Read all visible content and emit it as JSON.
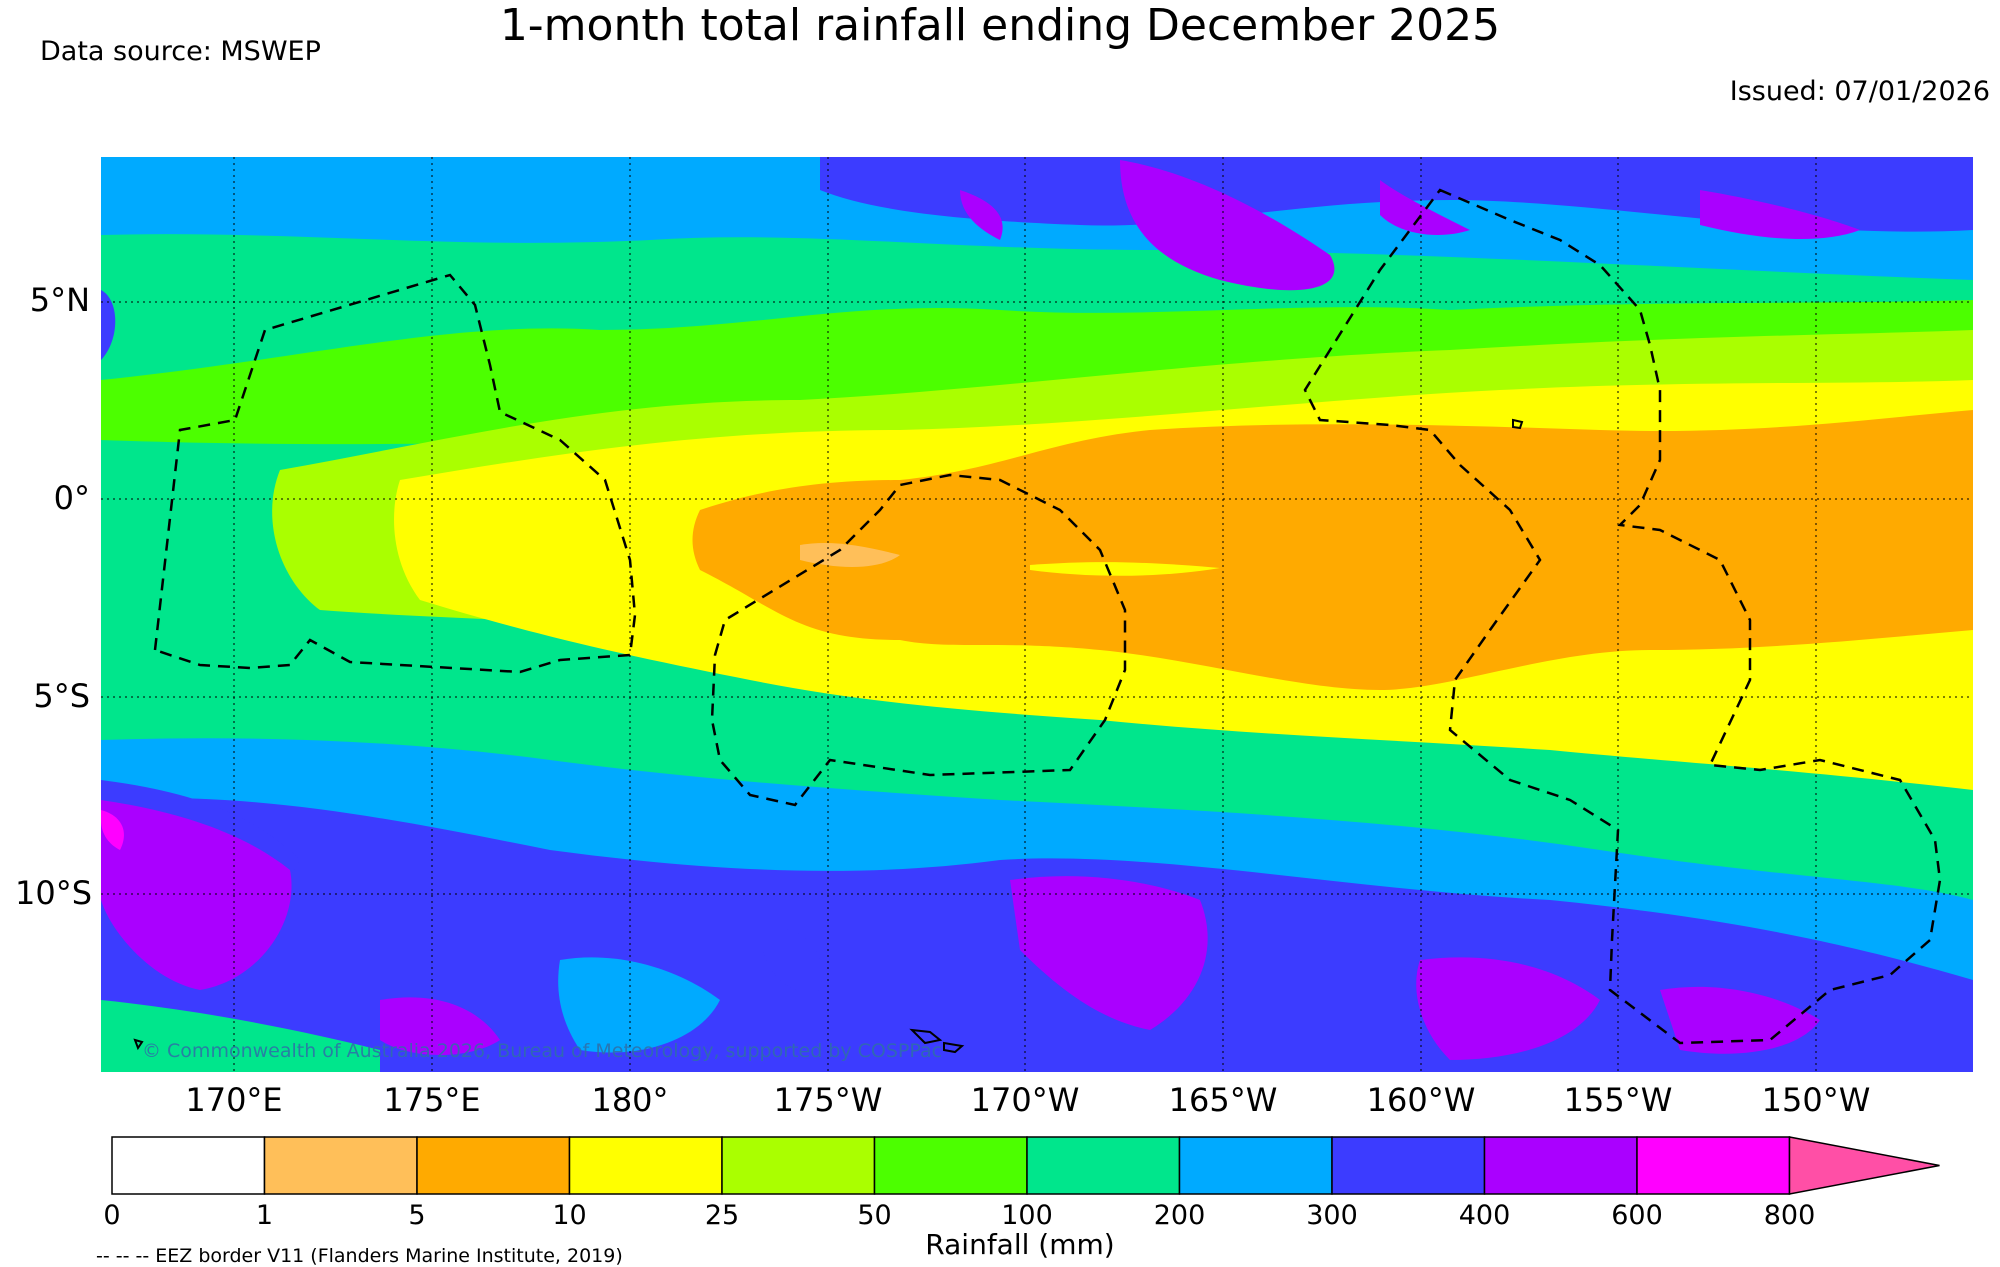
{
  "title": "1-month total rainfall ending December 2025",
  "data_source": "Data source: MSWEP",
  "issued": "Issued: 07/01/2026",
  "credit": "© Commonwealth of Australia 2026, Bureau of Meteorology, supported by COSPPac",
  "lat_labels": [
    "5°N",
    "0°",
    "5°S",
    "10°S"
  ],
  "lon_labels": [
    "170°E",
    "175°E",
    "180°",
    "175°W",
    "170°W",
    "165°W",
    "160°W",
    "155°W",
    "150°W"
  ],
  "colorbar": {
    "title": "Rainfall (mm)",
    "ticks": [
      "0",
      "1",
      "5",
      "10",
      "25",
      "50",
      "100",
      "200",
      "300",
      "400",
      "600",
      "800"
    ],
    "colors": [
      "#ffffff",
      "#ffbf59",
      "#ffaa00",
      "#ffff00",
      "#aaff00",
      "#4cff00",
      "#00e68c",
      "#00aaff",
      "#3c3cff",
      "#aa00ff",
      "#ff00ff",
      "#ff4fa6"
    ]
  },
  "eez_legend": "-- -- -- EEZ border V11 (Flanders Marine Institute, 2019)"
}
